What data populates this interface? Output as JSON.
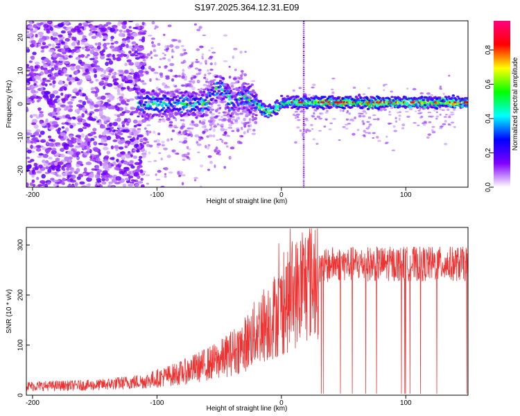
{
  "title": "S197.2025.364.12.31.E09",
  "chart_data": [
    {
      "type": "heatmap",
      "name": "spectrogram",
      "xlabel": "Height of straight line (km)",
      "ylabel": "Frequency (Hz)",
      "xlim": [
        -205,
        150
      ],
      "ylim": [
        -25,
        25
      ],
      "xticks": [
        -200,
        -100,
        0,
        100
      ],
      "yticks": [
        -20,
        -10,
        0,
        10,
        20
      ],
      "colorbar": {
        "label": "Normalized spectral amplitude",
        "range": [
          0,
          0.97
        ],
        "ticks": [
          0.0,
          0.2,
          0.4,
          0.6,
          0.8
        ],
        "colors": [
          "#ffffff",
          "#8000ff",
          "#0000ff",
          "#00ffff",
          "#00ff00",
          "#ffff00",
          "#ff0000",
          "#ff0080"
        ]
      },
      "signal_band": {
        "freq_hz": 0.0,
        "start_km": -115,
        "end_km": 150
      },
      "vertical_artifact_km": 18
    },
    {
      "type": "line",
      "name": "snr",
      "xlabel": "Height of straight line (km)",
      "ylabel": "SNR (10 * v/v)",
      "xlim": [
        -205,
        150
      ],
      "ylim": [
        0,
        335
      ],
      "xticks": [
        -200,
        -100,
        0,
        100
      ],
      "yticks": [
        0,
        100,
        200,
        300
      ],
      "color": "#ee3333",
      "trend_points": [
        [
          -205,
          18
        ],
        [
          -150,
          20
        ],
        [
          -110,
          28
        ],
        [
          -80,
          45
        ],
        [
          -50,
          70
        ],
        [
          -30,
          100
        ],
        [
          -15,
          140
        ],
        [
          0,
          170
        ],
        [
          10,
          200
        ],
        [
          20,
          225
        ],
        [
          30,
          250
        ],
        [
          40,
          262
        ],
        [
          60,
          262
        ],
        [
          100,
          262
        ],
        [
          150,
          262
        ]
      ]
    }
  ]
}
